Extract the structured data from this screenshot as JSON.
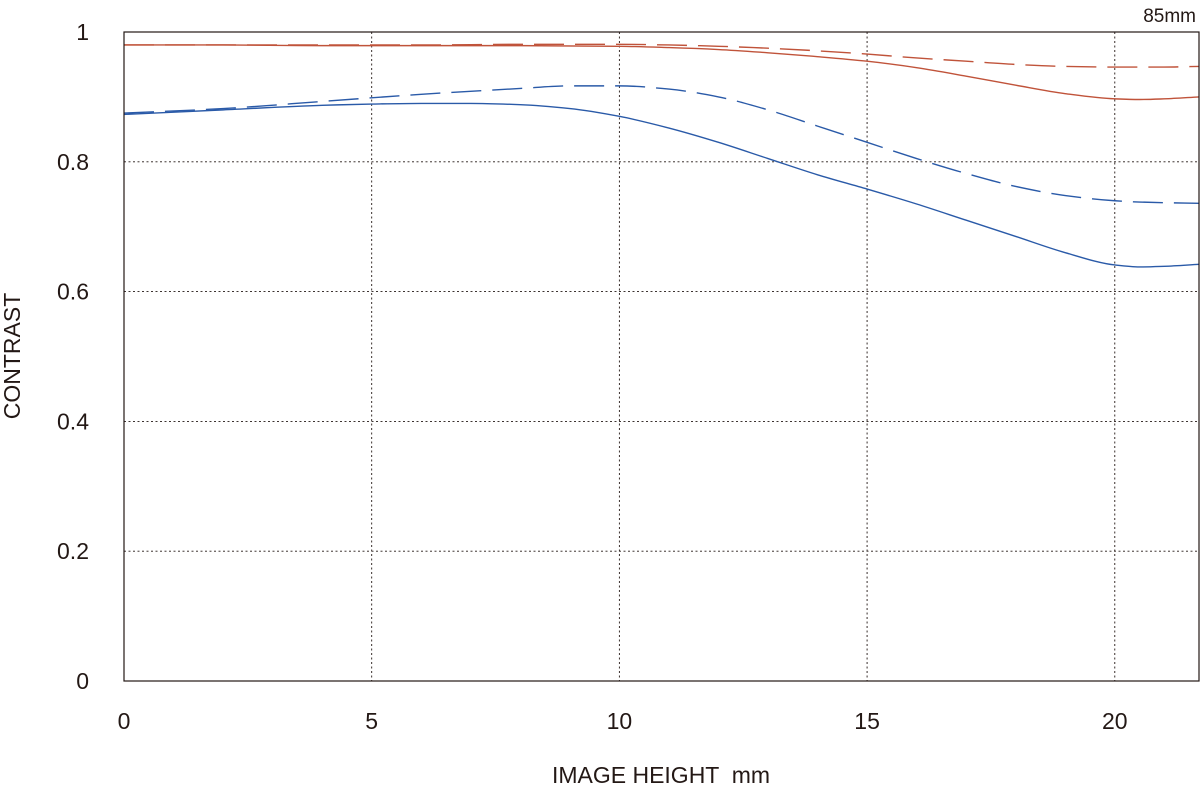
{
  "chart_data": {
    "type": "line",
    "title": "85mm",
    "xlabel": "IMAGE HEIGHT  mm",
    "ylabel": "CONTRAST",
    "xlim": [
      0,
      21.7
    ],
    "ylim": [
      0,
      1
    ],
    "xticks": [
      0,
      5,
      10,
      15,
      20
    ],
    "xtick_labels": [
      "0",
      "5",
      "10",
      "15",
      "20"
    ],
    "yticks": [
      0,
      0.2,
      0.4,
      0.6,
      0.8,
      1
    ],
    "ytick_labels": [
      "0",
      "0.2",
      "0.4",
      "0.6",
      "0.8",
      "1"
    ],
    "grid": true,
    "series": [
      {
        "color": "#c0533a",
        "style": "solid",
        "x": [
          0,
          2,
          4,
          6,
          8,
          10,
          11,
          12,
          13,
          14,
          15,
          16,
          17,
          18,
          19,
          20,
          20.5,
          21,
          21.7
        ],
        "values": [
          0.98,
          0.98,
          0.979,
          0.979,
          0.979,
          0.978,
          0.976,
          0.973,
          0.968,
          0.962,
          0.955,
          0.945,
          0.932,
          0.918,
          0.905,
          0.897,
          0.896,
          0.897,
          0.9
        ]
      },
      {
        "color": "#c0533a",
        "style": "dashed",
        "x": [
          0,
          2,
          4,
          6,
          8,
          10,
          11,
          12,
          13,
          14,
          15,
          16,
          17,
          18,
          19,
          20,
          20.5,
          21,
          21.7
        ],
        "values": [
          0.98,
          0.98,
          0.98,
          0.98,
          0.981,
          0.981,
          0.98,
          0.978,
          0.975,
          0.971,
          0.966,
          0.96,
          0.955,
          0.95,
          0.947,
          0.946,
          0.946,
          0.946,
          0.947
        ]
      },
      {
        "color": "#2a5aa8",
        "style": "solid",
        "x": [
          0,
          2,
          4,
          5,
          6,
          7,
          8,
          9,
          10,
          11,
          12,
          13,
          14,
          15,
          16,
          17,
          18,
          19,
          20,
          20.5,
          21,
          21.7
        ],
        "values": [
          0.873,
          0.88,
          0.887,
          0.889,
          0.89,
          0.89,
          0.888,
          0.882,
          0.87,
          0.852,
          0.83,
          0.805,
          0.78,
          0.758,
          0.735,
          0.71,
          0.685,
          0.66,
          0.641,
          0.638,
          0.639,
          0.642
        ]
      },
      {
        "color": "#2a5aa8",
        "style": "dashed",
        "x": [
          0,
          2,
          4,
          6,
          8,
          9,
          10,
          11,
          12,
          13,
          14,
          15,
          16,
          17,
          18,
          19,
          20,
          20.5,
          21,
          21.7
        ],
        "values": [
          0.875,
          0.882,
          0.893,
          0.904,
          0.913,
          0.917,
          0.917,
          0.912,
          0.9,
          0.88,
          0.855,
          0.83,
          0.805,
          0.782,
          0.762,
          0.748,
          0.74,
          0.738,
          0.737,
          0.736
        ]
      }
    ]
  }
}
